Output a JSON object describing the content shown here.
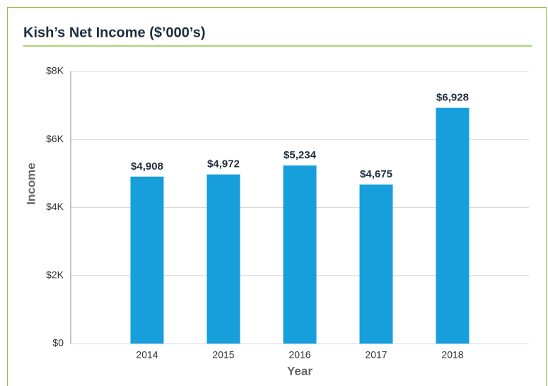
{
  "chart_data": {
    "type": "bar",
    "title": "Kish’s Net Income ($’000’s)",
    "x_label": "Year",
    "y_label": "Income",
    "categories": [
      "2014",
      "2015",
      "2016",
      "2017",
      "2018"
    ],
    "values": [
      4908,
      4972,
      5234,
      4675,
      6928
    ],
    "value_labels": [
      "$4,908",
      "$4,972",
      "$5,234",
      "$4,675",
      "$6,928"
    ],
    "color": "#169fdb",
    "ylim": [
      0,
      8000
    ],
    "yticks": [
      {
        "value": 0,
        "label": "$0"
      },
      {
        "value": 2000,
        "label": "$2K"
      },
      {
        "value": 4000,
        "label": "$4K"
      },
      {
        "value": 6000,
        "label": "$6K"
      },
      {
        "value": 8000,
        "label": "$8K"
      }
    ],
    "grid": true
  }
}
